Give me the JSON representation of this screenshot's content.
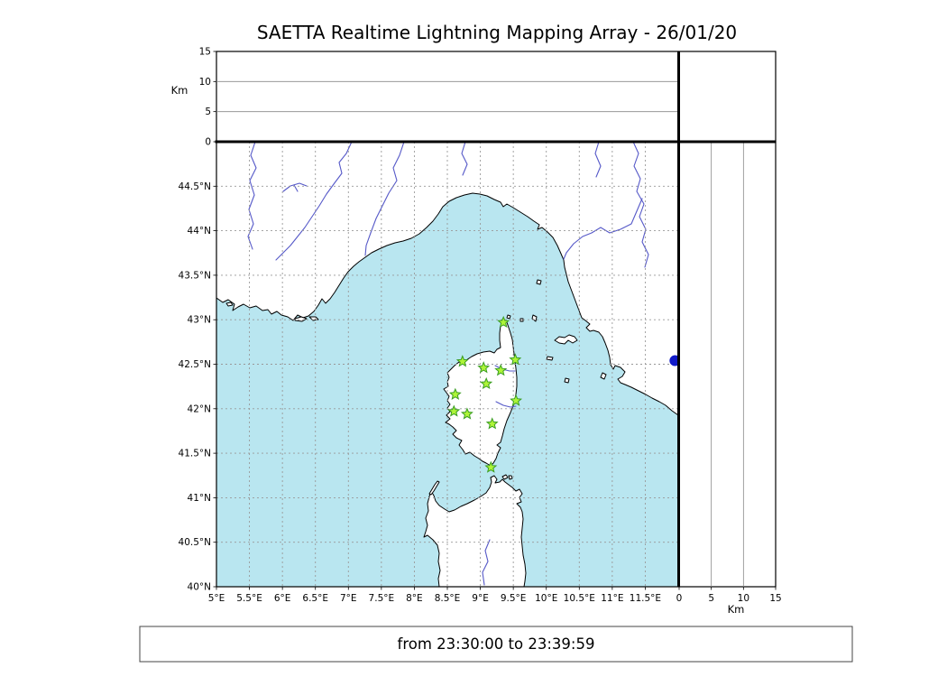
{
  "title": "SAETTA Realtime Lightning Mapping Array - 26/01/20",
  "footer": {
    "time_range": "from 23:30:00 to 23:39:59"
  },
  "colors": {
    "sea": "#b9e6f0",
    "land": "#ffffff",
    "coastline": "#000000",
    "river": "#5558c8",
    "grid": "#999999",
    "altitude_grid": "#888888",
    "station_fill": "#aef438",
    "station_stroke": "#3a9d23",
    "offshore_marker": "#1019c8"
  },
  "map_axes": {
    "lon_ticks": [
      {
        "v": 5,
        "label": "5°E"
      },
      {
        "v": 5.5,
        "label": "5.5°E"
      },
      {
        "v": 6,
        "label": "6°E"
      },
      {
        "v": 6.5,
        "label": "6.5°E"
      },
      {
        "v": 7,
        "label": "7°E"
      },
      {
        "v": 7.5,
        "label": "7.5°E"
      },
      {
        "v": 8,
        "label": "8°E"
      },
      {
        "v": 8.5,
        "label": "8.5°E"
      },
      {
        "v": 9,
        "label": "9°E"
      },
      {
        "v": 9.5,
        "label": "9.5°E"
      },
      {
        "v": 10,
        "label": "10°E"
      },
      {
        "v": 10.5,
        "label": "10.5°E"
      },
      {
        "v": 11,
        "label": "11°E"
      },
      {
        "v": 11.5,
        "label": "11.5°E"
      }
    ],
    "lat_ticks": [
      {
        "v": 44.5,
        "label": "44.5°N"
      },
      {
        "v": 44,
        "label": "44°N"
      },
      {
        "v": 43.5,
        "label": "43.5°N"
      },
      {
        "v": 43,
        "label": "43°N"
      },
      {
        "v": 42.5,
        "label": "42.5°N"
      },
      {
        "v": 42,
        "label": "42°N"
      },
      {
        "v": 41.5,
        "label": "41.5°N"
      },
      {
        "v": 41,
        "label": "41°N"
      },
      {
        "v": 40.5,
        "label": "40.5°N"
      },
      {
        "v": 40,
        "label": "40°N"
      }
    ],
    "lon_range": [
      5,
      12
    ],
    "lat_range": [
      40,
      45
    ]
  },
  "altitude_axes": {
    "unit_label": "Km",
    "ticks": [
      {
        "v": 0,
        "label": "0"
      },
      {
        "v": 5,
        "label": "5"
      },
      {
        "v": 10,
        "label": "10"
      },
      {
        "v": 15,
        "label": "15"
      }
    ],
    "range_km": [
      0,
      15
    ]
  },
  "stations": [
    {
      "lon": 9.35,
      "lat": 42.97
    },
    {
      "lon": 8.73,
      "lat": 42.53
    },
    {
      "lon": 9.05,
      "lat": 42.46
    },
    {
      "lon": 9.31,
      "lat": 42.43
    },
    {
      "lon": 9.53,
      "lat": 42.55
    },
    {
      "lon": 9.09,
      "lat": 42.28
    },
    {
      "lon": 8.62,
      "lat": 42.16
    },
    {
      "lon": 9.54,
      "lat": 42.09
    },
    {
      "lon": 8.6,
      "lat": 41.97
    },
    {
      "lon": 8.8,
      "lat": 41.94
    },
    {
      "lon": 9.18,
      "lat": 41.83
    },
    {
      "lon": 9.16,
      "lat": 41.34
    }
  ],
  "offshore_marker": {
    "lon": 11.95,
    "lat": 42.54
  },
  "chart_data": {
    "type": "map",
    "title": "SAETTA Realtime Lightning Mapping Array - 26/01/20",
    "region": "Western Mediterranean: SE France, NW Italy coast, Corsica, northern Sardinia",
    "lon_range_deg_e": [
      5,
      12
    ],
    "lat_range_deg_n": [
      40,
      45
    ],
    "altitude_panel_range_km": [
      0,
      15
    ],
    "altitude_gridlines_km": [
      5,
      10
    ],
    "time_window": "from 23:30:00 to 23:39:59",
    "station_markers_lon_lat": [
      [
        9.35,
        42.97
      ],
      [
        8.73,
        42.53
      ],
      [
        9.05,
        42.46
      ],
      [
        9.31,
        42.43
      ],
      [
        9.53,
        42.55
      ],
      [
        9.09,
        42.28
      ],
      [
        8.62,
        42.16
      ],
      [
        9.54,
        42.09
      ],
      [
        8.6,
        41.97
      ],
      [
        8.8,
        41.94
      ],
      [
        9.18,
        41.83
      ],
      [
        9.16,
        41.34
      ]
    ],
    "offshore_marker_lon_lat": [
      11.95,
      42.54
    ],
    "lightning_points": [],
    "grid": "dashed 0.5 degree graticule",
    "legend_position": "none"
  }
}
